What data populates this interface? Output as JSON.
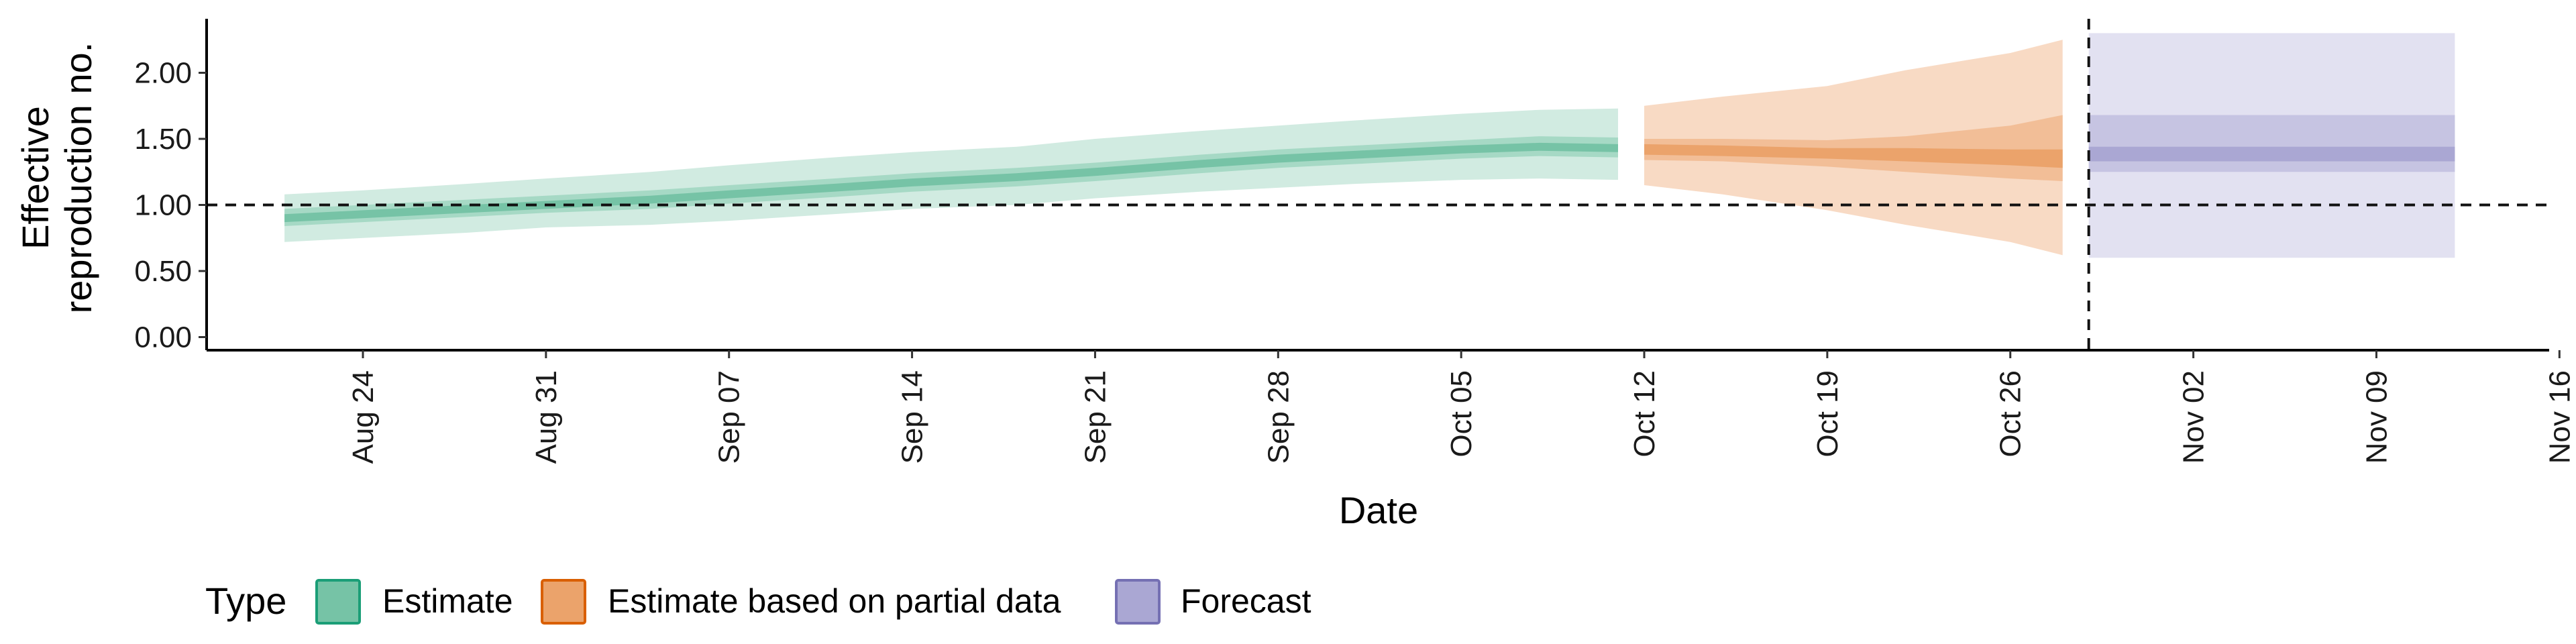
{
  "chart_data": {
    "type": "area",
    "xlabel": "Date",
    "ylabel_lines": [
      "Effective",
      "reproduction no."
    ],
    "ylim": [
      -0.1,
      2.4
    ],
    "xlim": [
      "2020-08-15",
      "2020-11-16"
    ],
    "y_ticks": [
      {
        "value": 0.0,
        "label": "0.00"
      },
      {
        "value": 0.5,
        "label": "0.50"
      },
      {
        "value": 1.0,
        "label": "1.00"
      },
      {
        "value": 1.5,
        "label": "1.50"
      },
      {
        "value": 2.0,
        "label": "2.00"
      }
    ],
    "x_ticks": [
      {
        "date": "2020-08-24",
        "label": "Aug 24"
      },
      {
        "date": "2020-08-31",
        "label": "Aug 31"
      },
      {
        "date": "2020-09-07",
        "label": "Sep 07"
      },
      {
        "date": "2020-09-14",
        "label": "Sep 14"
      },
      {
        "date": "2020-09-21",
        "label": "Sep 21"
      },
      {
        "date": "2020-09-28",
        "label": "Sep 28"
      },
      {
        "date": "2020-10-05",
        "label": "Oct 05"
      },
      {
        "date": "2020-10-12",
        "label": "Oct 12"
      },
      {
        "date": "2020-10-19",
        "label": "Oct 19"
      },
      {
        "date": "2020-10-26",
        "label": "Oct 26"
      },
      {
        "date": "2020-11-02",
        "label": "Nov 02"
      },
      {
        "date": "2020-11-09",
        "label": "Nov 09"
      },
      {
        "date": "2020-11-16",
        "label": "Nov 16"
      }
    ],
    "reference_lines": {
      "horizontal_y": 1.0,
      "vertical_date": "2020-10-29"
    },
    "legend": {
      "title": "Type",
      "position": "bottom-left",
      "items": [
        {
          "label": "Estimate",
          "fill": "#76c3a6",
          "stroke": "#1b9e77"
        },
        {
          "label": "Estimate based on partial data",
          "fill": "#eba36b",
          "stroke": "#d95f02"
        },
        {
          "label": "Forecast",
          "fill": "#aaa7d3",
          "stroke": "#7570b3"
        }
      ]
    },
    "series": [
      {
        "name": "Estimate",
        "colors": {
          "outer": "#d1ebe1",
          "mid": "#a6d9c5",
          "inner": "#76c3a6"
        },
        "points": [
          {
            "date": "2020-08-21",
            "median": 0.9,
            "lo90": 0.72,
            "hi90": 1.08,
            "lo50": 0.84,
            "hi50": 0.97,
            "lo20": 0.87,
            "hi20": 0.93
          },
          {
            "date": "2020-08-24",
            "median": 0.93,
            "lo90": 0.75,
            "hi90": 1.11,
            "lo50": 0.87,
            "hi50": 1.0,
            "lo20": 0.9,
            "hi20": 0.96
          },
          {
            "date": "2020-08-28",
            "median": 0.97,
            "lo90": 0.79,
            "hi90": 1.16,
            "lo50": 0.91,
            "hi50": 1.04,
            "lo20": 0.94,
            "hi20": 1.0
          },
          {
            "date": "2020-08-31",
            "median": 1.0,
            "lo90": 0.83,
            "hi90": 1.2,
            "lo50": 0.94,
            "hi50": 1.07,
            "lo20": 0.97,
            "hi20": 1.03
          },
          {
            "date": "2020-09-04",
            "median": 1.04,
            "lo90": 0.85,
            "hi90": 1.25,
            "lo50": 0.97,
            "hi50": 1.11,
            "lo20": 1.01,
            "hi20": 1.07
          },
          {
            "date": "2020-09-07",
            "median": 1.08,
            "lo90": 0.88,
            "hi90": 1.3,
            "lo50": 1.01,
            "hi50": 1.15,
            "lo20": 1.05,
            "hi20": 1.11
          },
          {
            "date": "2020-09-11",
            "median": 1.13,
            "lo90": 0.93,
            "hi90": 1.36,
            "lo50": 1.06,
            "hi50": 1.2,
            "lo20": 1.1,
            "hi20": 1.16
          },
          {
            "date": "2020-09-14",
            "median": 1.17,
            "lo90": 0.97,
            "hi90": 1.4,
            "lo50": 1.1,
            "hi50": 1.24,
            "lo20": 1.14,
            "hi20": 1.2
          },
          {
            "date": "2020-09-18",
            "median": 1.21,
            "lo90": 1.0,
            "hi90": 1.44,
            "lo50": 1.14,
            "hi50": 1.28,
            "lo20": 1.18,
            "hi20": 1.24
          },
          {
            "date": "2020-09-21",
            "median": 1.25,
            "lo90": 1.05,
            "hi90": 1.5,
            "lo50": 1.18,
            "hi50": 1.32,
            "lo20": 1.22,
            "hi20": 1.28
          },
          {
            "date": "2020-09-25",
            "median": 1.31,
            "lo90": 1.1,
            "hi90": 1.56,
            "lo50": 1.24,
            "hi50": 1.38,
            "lo20": 1.28,
            "hi20": 1.34
          },
          {
            "date": "2020-09-28",
            "median": 1.35,
            "lo90": 1.13,
            "hi90": 1.6,
            "lo50": 1.28,
            "hi50": 1.42,
            "lo20": 1.32,
            "hi20": 1.38
          },
          {
            "date": "2020-10-01",
            "median": 1.38,
            "lo90": 1.16,
            "hi90": 1.64,
            "lo50": 1.31,
            "hi50": 1.45,
            "lo20": 1.35,
            "hi20": 1.41
          },
          {
            "date": "2020-10-05",
            "median": 1.42,
            "lo90": 1.19,
            "hi90": 1.69,
            "lo50": 1.35,
            "hi50": 1.49,
            "lo20": 1.39,
            "hi20": 1.45
          },
          {
            "date": "2020-10-08",
            "median": 1.44,
            "lo90": 1.2,
            "hi90": 1.72,
            "lo50": 1.37,
            "hi50": 1.52,
            "lo20": 1.41,
            "hi20": 1.47
          },
          {
            "date": "2020-10-11",
            "median": 1.43,
            "lo90": 1.19,
            "hi90": 1.73,
            "lo50": 1.36,
            "hi50": 1.51,
            "lo20": 1.4,
            "hi20": 1.46
          }
        ]
      },
      {
        "name": "Estimate based on partial data",
        "colors": {
          "outer": "#f8dac4",
          "mid": "#f2be97",
          "inner": "#eba36b"
        },
        "points": [
          {
            "date": "2020-10-12",
            "median": 1.42,
            "lo90": 1.15,
            "hi90": 1.75,
            "lo50": 1.34,
            "hi50": 1.5,
            "lo20": 1.38,
            "hi20": 1.46
          },
          {
            "date": "2020-10-15",
            "median": 1.41,
            "lo90": 1.08,
            "hi90": 1.82,
            "lo50": 1.33,
            "hi50": 1.5,
            "lo20": 1.37,
            "hi20": 1.45
          },
          {
            "date": "2020-10-19",
            "median": 1.39,
            "lo90": 0.96,
            "hi90": 1.9,
            "lo50": 1.29,
            "hi50": 1.49,
            "lo20": 1.35,
            "hi20": 1.43
          },
          {
            "date": "2020-10-22",
            "median": 1.38,
            "lo90": 0.85,
            "hi90": 2.02,
            "lo50": 1.25,
            "hi50": 1.52,
            "lo20": 1.33,
            "hi20": 1.43
          },
          {
            "date": "2020-10-26",
            "median": 1.36,
            "lo90": 0.72,
            "hi90": 2.15,
            "lo50": 1.2,
            "hi50": 1.6,
            "lo20": 1.3,
            "hi20": 1.42
          },
          {
            "date": "2020-10-28",
            "median": 1.35,
            "lo90": 0.62,
            "hi90": 2.25,
            "lo50": 1.18,
            "hi50": 1.68,
            "lo20": 1.28,
            "hi20": 1.42
          }
        ]
      },
      {
        "name": "Forecast",
        "colors": {
          "outer": "#e2e1f1",
          "mid": "#c6c4e2",
          "inner": "#aaa7d3"
        },
        "points": [
          {
            "date": "2020-10-29",
            "median": 1.35,
            "lo90": 0.6,
            "hi90": 2.3,
            "lo50": 1.25,
            "hi50": 1.68,
            "lo20": 1.33,
            "hi20": 1.44
          },
          {
            "date": "2020-11-12",
            "median": 1.35,
            "lo90": 0.6,
            "hi90": 2.3,
            "lo50": 1.25,
            "hi50": 1.68,
            "lo20": 1.33,
            "hi20": 1.44
          }
        ]
      }
    ]
  }
}
